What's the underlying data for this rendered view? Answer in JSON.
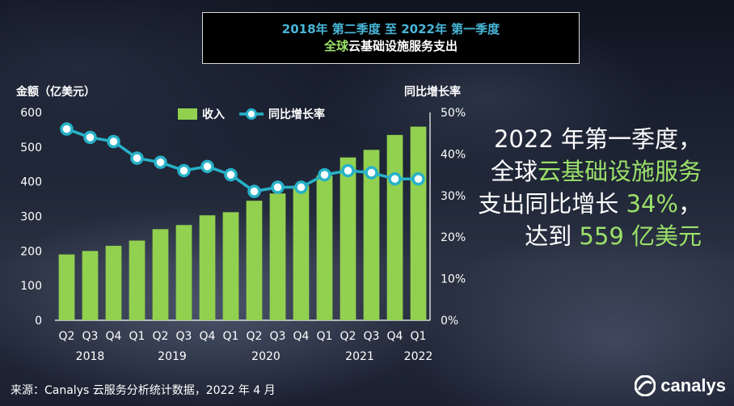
{
  "title": {
    "line1": "2018年 第二季度 至 2022年 第一季度",
    "line2_green": "全球",
    "line2_white": "云基础设施服务支出"
  },
  "axis_titles": {
    "left": "金额（亿美元）",
    "right": "同比增长率"
  },
  "callout": {
    "line1": "2022 年第一季度，",
    "line2_white": "全球",
    "line2_green": "云基础设施服务",
    "line3_white": "支出同比增长",
    "line3_green": "34%",
    "line3_tail": "，",
    "line4_white": "达到",
    "line4_green": "559 亿美元"
  },
  "source": "来源：Canalys 云服务分析统计数据，2022 年 4 月",
  "logo": {
    "text": "canalys",
    "icon": "canalys-logo-icon"
  },
  "colors": {
    "bar": "#92d050",
    "line": "#27b2c8",
    "marker_fill": "#ffffff",
    "title_blue": "#48b6d9",
    "highlight_green": "#9be16a"
  },
  "chart_data": {
    "type": "bar",
    "categories": [
      "Q2",
      "Q3",
      "Q4",
      "Q1",
      "Q2",
      "Q3",
      "Q4",
      "Q1",
      "Q2",
      "Q3",
      "Q4",
      "Q1",
      "Q2",
      "Q3",
      "Q4",
      "Q1"
    ],
    "year_labels": [
      {
        "label": "2018",
        "start": 0,
        "end": 2
      },
      {
        "label": "2019",
        "start": 3,
        "end": 6
      },
      {
        "label": "2020",
        "start": 7,
        "end": 10
      },
      {
        "label": "2021",
        "start": 11,
        "end": 14
      },
      {
        "label": "2022",
        "start": 15,
        "end": 15
      }
    ],
    "series": [
      {
        "name": "收入",
        "type": "bar",
        "axis": "left",
        "values": [
          190,
          200,
          215,
          230,
          263,
          275,
          303,
          312,
          345,
          366,
          389,
          418,
          470,
          492,
          535,
          559
        ]
      },
      {
        "name": "同比增长率",
        "type": "line",
        "axis": "right",
        "values": [
          46,
          44,
          43,
          39,
          38,
          36,
          37,
          35,
          31,
          32,
          32,
          35,
          36,
          35.5,
          34,
          34
        ]
      }
    ],
    "y_left": {
      "min": 0,
      "max": 600,
      "ticks": [
        0,
        100,
        200,
        300,
        400,
        500,
        600
      ]
    },
    "y_right": {
      "min": 0,
      "max": 50,
      "ticks": [
        "0%",
        "10%",
        "20%",
        "30%",
        "40%",
        "50%"
      ]
    },
    "legend": {
      "placement": "top-center"
    }
  }
}
